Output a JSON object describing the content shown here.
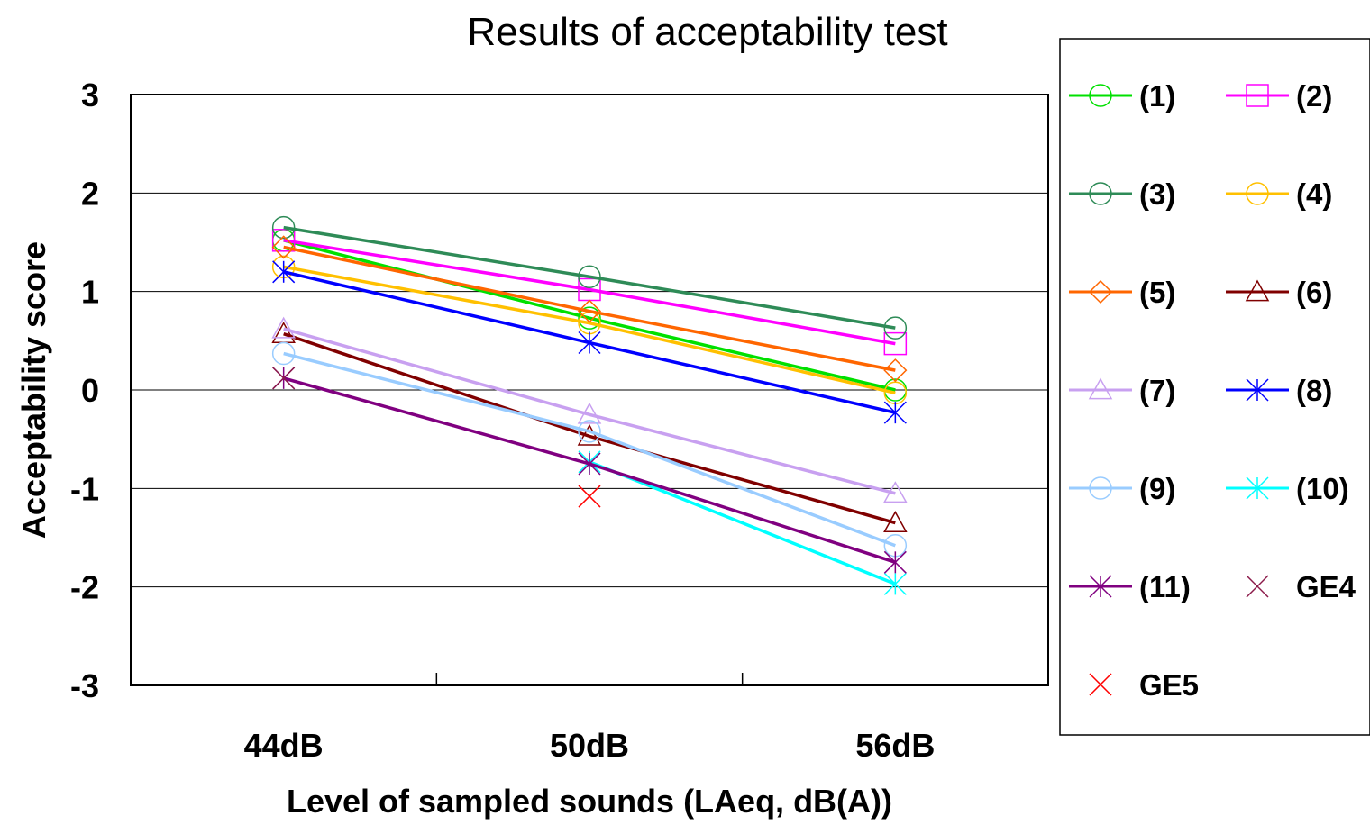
{
  "chart_data": {
    "type": "line",
    "title": "Results of acceptability test",
    "xlabel": "Level of sampled sounds  (LAeq, dB(A))",
    "ylabel": "Acceptability score",
    "categories": [
      "44dB",
      "50dB",
      "56dB"
    ],
    "ylim": [
      -3,
      3
    ],
    "yticks": [
      3,
      2,
      1,
      0,
      -1,
      -2,
      -3
    ],
    "grid": true,
    "legend_position": "right",
    "series": [
      {
        "name": "(1)",
        "color": "#00e000",
        "marker": "circle",
        "line": true,
        "values": [
          1.52,
          0.73,
          0.0
        ]
      },
      {
        "name": "(2)",
        "color": "#ff00ff",
        "marker": "square",
        "line": true,
        "values": [
          1.52,
          1.02,
          0.47
        ]
      },
      {
        "name": "(3)",
        "color": "#2e8b57",
        "marker": "circle",
        "line": true,
        "values": [
          1.65,
          1.15,
          0.63
        ]
      },
      {
        "name": "(4)",
        "color": "#ffc000",
        "marker": "circle",
        "line": true,
        "values": [
          1.25,
          0.68,
          -0.03
        ]
      },
      {
        "name": "(5)",
        "color": "#ff6600",
        "marker": "diamond",
        "line": true,
        "values": [
          1.45,
          0.8,
          0.2
        ]
      },
      {
        "name": "(6)",
        "color": "#800000",
        "marker": "triangle",
        "line": true,
        "values": [
          0.57,
          -0.47,
          -1.35
        ]
      },
      {
        "name": "(7)",
        "color": "#c8a0f0",
        "marker": "triangle",
        "line": true,
        "values": [
          0.62,
          -0.25,
          -1.05
        ]
      },
      {
        "name": "(8)",
        "color": "#0000ff",
        "marker": "asterisk",
        "line": true,
        "values": [
          1.2,
          0.48,
          -0.23
        ]
      },
      {
        "name": "(9)",
        "color": "#99ccff",
        "marker": "circle",
        "line": true,
        "values": [
          0.37,
          -0.42,
          -1.58
        ]
      },
      {
        "name": "(10)",
        "color": "#00ffff",
        "marker": "asterisk",
        "line": true,
        "values": [
          null,
          -0.73,
          -1.97
        ]
      },
      {
        "name": "(11)",
        "color": "#800080",
        "marker": "asterisk",
        "line": true,
        "values": [
          0.12,
          -0.75,
          -1.75
        ]
      },
      {
        "name": "GE4",
        "color": "#8b1a4a",
        "marker": "x",
        "line": false,
        "values": [
          0.12,
          null,
          null
        ]
      },
      {
        "name": "GE5",
        "color": "#ff0000",
        "marker": "x",
        "line": false,
        "values": [
          null,
          -1.08,
          null
        ]
      }
    ]
  }
}
